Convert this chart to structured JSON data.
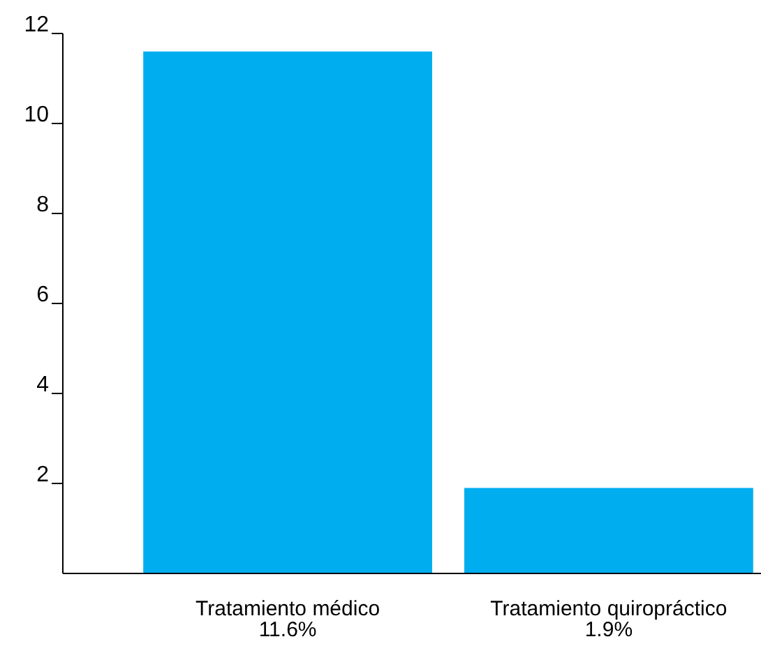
{
  "chart_data": {
    "type": "bar",
    "categories": [
      "Tratamiento médico",
      "Tratamiento quiropráctico"
    ],
    "values": [
      11.6,
      1.9
    ],
    "value_labels": [
      "11.6%",
      "1.9%"
    ],
    "color": "#00aeef",
    "ylim": [
      0,
      12
    ],
    "yticks": [
      2,
      4,
      6,
      8,
      10,
      12
    ]
  }
}
